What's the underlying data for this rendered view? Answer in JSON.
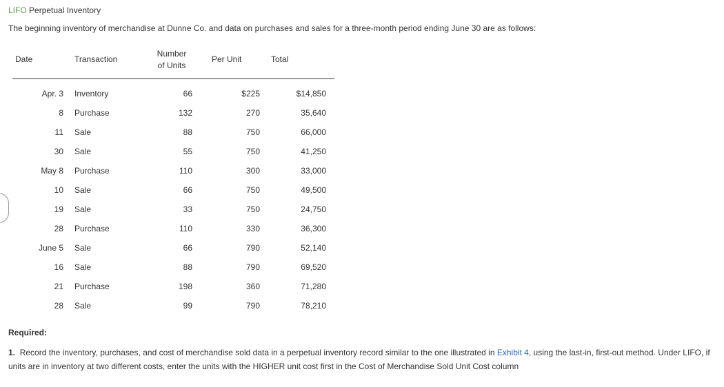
{
  "heading": {
    "lifo": "LIFO",
    "rest": "Perpetual Inventory"
  },
  "intro": "The beginning inventory of merchandise at Dunne Co. and data on purchases and sales for a three-month period ending June 30 are as follows:",
  "table": {
    "columns": {
      "date": "Date",
      "transaction": "Transaction",
      "units_l1": "Number",
      "units_l2": "of Units",
      "perunit": "Per Unit",
      "total": "Total"
    },
    "rows": [
      {
        "date": "Apr. 3",
        "trans": "Inventory",
        "units": "66",
        "perunit": "$225",
        "total": "$14,850"
      },
      {
        "date": "8",
        "trans": "Purchase",
        "units": "132",
        "perunit": "270",
        "total": "35,640"
      },
      {
        "date": "11",
        "trans": "Sale",
        "units": "88",
        "perunit": "750",
        "total": "66,000"
      },
      {
        "date": "30",
        "trans": "Sale",
        "units": "55",
        "perunit": "750",
        "total": "41,250"
      },
      {
        "date": "May 8",
        "trans": "Purchase",
        "units": "110",
        "perunit": "300",
        "total": "33,000"
      },
      {
        "date": "10",
        "trans": "Sale",
        "units": "66",
        "perunit": "750",
        "total": "49,500"
      },
      {
        "date": "19",
        "trans": "Sale",
        "units": "33",
        "perunit": "750",
        "total": "24,750"
      },
      {
        "date": "28",
        "trans": "Purchase",
        "units": "110",
        "perunit": "330",
        "total": "36,300"
      },
      {
        "date": "June 5",
        "trans": "Sale",
        "units": "66",
        "perunit": "790",
        "total": "52,140"
      },
      {
        "date": "16",
        "trans": "Sale",
        "units": "88",
        "perunit": "790",
        "total": "69,520"
      },
      {
        "date": "21",
        "trans": "Purchase",
        "units": "198",
        "perunit": "360",
        "total": "71,280"
      },
      {
        "date": "28",
        "trans": "Sale",
        "units": "99",
        "perunit": "790",
        "total": "78,210"
      }
    ]
  },
  "required": {
    "label": "Required:",
    "num": "1.",
    "text_a": "Record the inventory, purchases, and cost of merchandise sold data in a perpetual inventory record similar to the one illustrated in ",
    "link": "Exhibit 4",
    "text_b": ", using the last-in, first-out method. Under LIFO, if units are in inventory at two different costs, enter the units with the HIGHER unit cost first in the Cost of Merchandise Sold Unit Cost column"
  },
  "colors": {
    "lifo_green": "#5a9e4a",
    "link_blue": "#2a6abf",
    "text": "#333333",
    "rule": "#333333",
    "background": "#ffffff"
  }
}
